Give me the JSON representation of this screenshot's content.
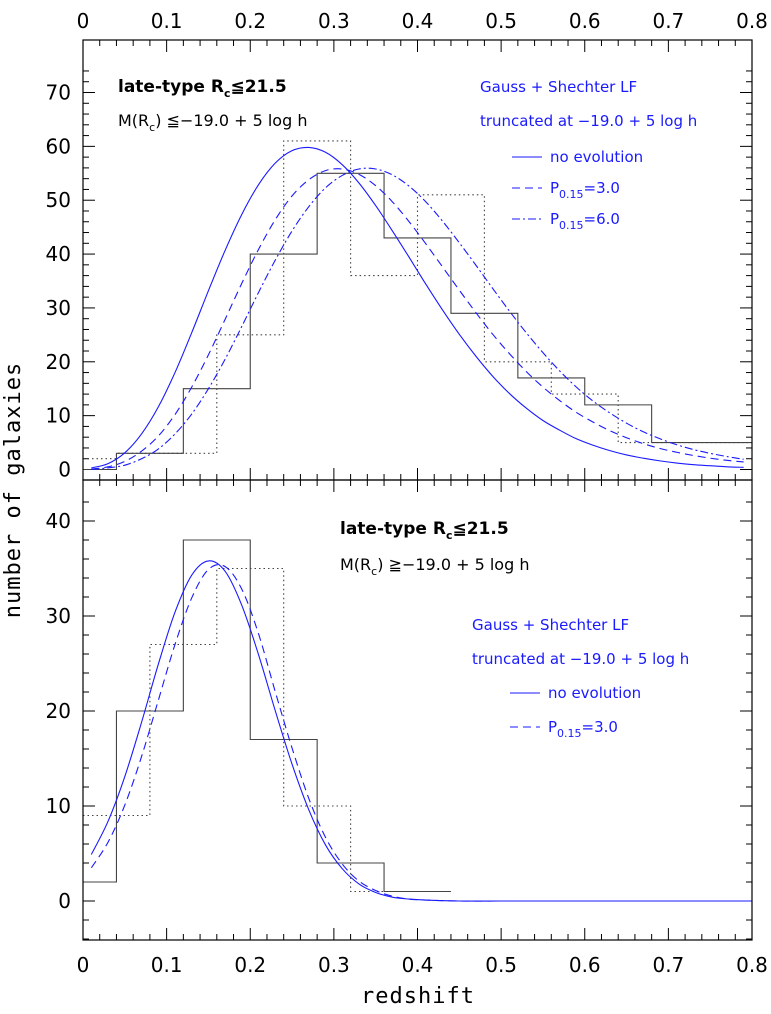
{
  "figure": {
    "xlabel": "redshift",
    "ylabel": "number of galaxies"
  },
  "chart_data": [
    {
      "type": "histogram+line",
      "panel": "top",
      "xlim": [
        0,
        0.8
      ],
      "ylim": [
        0,
        75
      ],
      "x_ticks": [
        "0",
        "0.1",
        "0.2",
        "0.3",
        "0.4",
        "0.5",
        "0.6",
        "0.7",
        "0.8"
      ],
      "y_ticks": [
        "0",
        "10",
        "20",
        "30",
        "40",
        "50",
        "60",
        "70"
      ],
      "annotations": {
        "sample_prefix": "late-type R",
        "sample_sub": "c",
        "sample_suffix": "≦21.5",
        "cut_prefix": "M(R",
        "cut_sub": "c",
        "cut_suffix": ") ≦−19.0 + 5 log h",
        "lf_title": "Gauss + Shechter LF",
        "lf_trunc": "truncated at −19.0 + 5 log h"
      },
      "legend": [
        {
          "label": "no evolution",
          "style": "solid"
        },
        {
          "label_prefix": "P",
          "label_sub": "0.15",
          "label_suffix": "=3.0",
          "style": "dashed"
        },
        {
          "label_prefix": "P",
          "label_sub": "0.15",
          "label_suffix": "=6.0",
          "style": "dashdot"
        }
      ],
      "histograms": [
        {
          "style": "solid",
          "color": "#444444",
          "edges": [
            0,
            0.04,
            0.12,
            0.2,
            0.28,
            0.36,
            0.44,
            0.52,
            0.6,
            0.68,
            0.8
          ],
          "counts": [
            0,
            3,
            15,
            40,
            55,
            43,
            29,
            17,
            12,
            5
          ]
        },
        {
          "style": "dotted",
          "color": "#444444",
          "edges": [
            0,
            0.04,
            0.12,
            0.16,
            0.24,
            0.32,
            0.4,
            0.48,
            0.56,
            0.64,
            0.8
          ],
          "counts": [
            2,
            3,
            3,
            25,
            61,
            36,
            51,
            20,
            14,
            5
          ]
        }
      ],
      "series": [
        {
          "style": "solid",
          "color": "#1a1aff",
          "x": [
            0.01,
            0.03,
            0.05,
            0.07,
            0.09,
            0.11,
            0.13,
            0.15,
            0.17,
            0.19,
            0.21,
            0.23,
            0.25,
            0.27,
            0.29,
            0.31,
            0.33,
            0.35,
            0.37,
            0.39,
            0.41,
            0.43,
            0.45,
            0.47,
            0.49,
            0.51,
            0.53,
            0.55,
            0.57,
            0.59,
            0.61,
            0.63,
            0.65,
            0.67,
            0.69,
            0.71,
            0.73,
            0.75,
            0.77,
            0.79
          ],
          "y": [
            0.3,
            1.1,
            3.1,
            6.6,
            11.6,
            18.0,
            25.4,
            33.2,
            40.7,
            47.4,
            52.9,
            56.9,
            59.2,
            59.8,
            58.9,
            56.6,
            53.2,
            49.0,
            44.3,
            39.4,
            34.4,
            29.6,
            25.1,
            21.0,
            17.3,
            14.1,
            11.4,
            9.1,
            7.3,
            5.7,
            4.5,
            3.5,
            2.7,
            2.1,
            1.6,
            1.2,
            0.9,
            0.7,
            0.5,
            0.4
          ]
        },
        {
          "style": "dashed",
          "color": "#1a1aff",
          "x": [
            0.01,
            0.03,
            0.05,
            0.07,
            0.09,
            0.11,
            0.13,
            0.15,
            0.17,
            0.19,
            0.21,
            0.23,
            0.25,
            0.27,
            0.29,
            0.31,
            0.33,
            0.35,
            0.37,
            0.39,
            0.41,
            0.43,
            0.45,
            0.47,
            0.49,
            0.51,
            0.53,
            0.55,
            0.57,
            0.59,
            0.61,
            0.63,
            0.65,
            0.67,
            0.69,
            0.71,
            0.73,
            0.75,
            0.77,
            0.79
          ],
          "y": [
            0.1,
            0.5,
            1.5,
            3.4,
            6.2,
            10.2,
            15.3,
            21.3,
            27.9,
            34.6,
            40.9,
            46.4,
            50.8,
            53.8,
            55.5,
            55.8,
            54.8,
            52.7,
            49.7,
            46.0,
            41.9,
            37.6,
            33.3,
            29.1,
            25.1,
            21.5,
            18.2,
            15.3,
            12.8,
            10.6,
            8.8,
            7.2,
            5.9,
            4.8,
            3.9,
            3.2,
            2.6,
            2.1,
            1.7,
            1.4
          ]
        },
        {
          "style": "dashdot",
          "color": "#1a1aff",
          "x": [
            0.01,
            0.03,
            0.05,
            0.07,
            0.09,
            0.11,
            0.13,
            0.15,
            0.17,
            0.19,
            0.21,
            0.23,
            0.25,
            0.27,
            0.29,
            0.31,
            0.33,
            0.35,
            0.37,
            0.39,
            0.41,
            0.43,
            0.45,
            0.47,
            0.49,
            0.51,
            0.53,
            0.55,
            0.57,
            0.59,
            0.61,
            0.63,
            0.65,
            0.67,
            0.69,
            0.71,
            0.73,
            0.75,
            0.77,
            0.79
          ],
          "y": [
            0.0,
            0.3,
            0.8,
            2.0,
            3.8,
            6.6,
            10.3,
            15.0,
            20.5,
            26.6,
            32.9,
            38.9,
            44.3,
            48.8,
            52.3,
            54.6,
            55.8,
            55.8,
            54.7,
            52.6,
            49.7,
            46.1,
            42.1,
            37.9,
            33.6,
            29.4,
            25.4,
            21.7,
            18.3,
            15.3,
            12.7,
            10.5,
            8.6,
            7.0,
            5.7,
            4.6,
            3.7,
            3.0,
            2.4,
            1.9
          ]
        }
      ]
    },
    {
      "type": "histogram+line",
      "panel": "bottom",
      "xlim": [
        0,
        0.8
      ],
      "ylim": [
        -4,
        43
      ],
      "x_ticks": [
        "0",
        "0.1",
        "0.2",
        "0.3",
        "0.4",
        "0.5",
        "0.6",
        "0.7",
        "0.8"
      ],
      "y_ticks": [
        "0",
        "10",
        "20",
        "30",
        "40"
      ],
      "annotations": {
        "sample_prefix": "late-type R",
        "sample_sub": "c",
        "sample_suffix": "≦21.5",
        "cut_prefix": "M(R",
        "cut_sub": "c",
        "cut_suffix": ") ≧−19.0 + 5 log h",
        "lf_title": "Gauss + Shechter LF",
        "lf_trunc": "truncated at −19.0 + 5 log h"
      },
      "legend": [
        {
          "label": "no evolution",
          "style": "solid"
        },
        {
          "label_prefix": "P",
          "label_sub": "0.15",
          "label_suffix": "=3.0",
          "style": "dashed"
        }
      ],
      "histograms": [
        {
          "style": "solid",
          "color": "#444444",
          "edges": [
            0,
            0.04,
            0.12,
            0.2,
            0.28,
            0.36,
            0.44
          ],
          "counts": [
            2,
            20,
            38,
            17,
            4,
            1
          ]
        },
        {
          "style": "dotted",
          "color": "#444444",
          "edges": [
            0,
            0.08,
            0.16,
            0.24,
            0.32,
            0.4
          ],
          "counts": [
            9,
            27,
            35,
            10,
            1
          ]
        }
      ],
      "series": [
        {
          "style": "solid",
          "color": "#1a1aff",
          "x": [
            0.01,
            0.03,
            0.05,
            0.07,
            0.09,
            0.11,
            0.13,
            0.15,
            0.17,
            0.19,
            0.21,
            0.23,
            0.25,
            0.27,
            0.29,
            0.31,
            0.33,
            0.35,
            0.37,
            0.39,
            0.41,
            0.45,
            0.5,
            0.55,
            0.6,
            0.65,
            0.7,
            0.75,
            0.8
          ],
          "y": [
            4.9,
            8.4,
            13.1,
            18.8,
            24.9,
            30.4,
            34.3,
            35.8,
            34.7,
            31.1,
            25.9,
            20.0,
            14.4,
            9.6,
            5.9,
            3.4,
            1.8,
            0.9,
            0.4,
            0.2,
            0.1,
            0.0,
            0.0,
            0.0,
            0.0,
            0.0,
            0.0,
            0.0,
            0.0
          ]
        },
        {
          "style": "dashed",
          "color": "#1a1aff",
          "x": [
            0.01,
            0.03,
            0.05,
            0.07,
            0.09,
            0.11,
            0.13,
            0.15,
            0.17,
            0.19,
            0.21,
            0.23,
            0.25,
            0.27,
            0.29,
            0.31,
            0.33,
            0.35,
            0.37,
            0.39,
            0.41,
            0.45,
            0.5,
            0.55,
            0.6,
            0.65,
            0.7,
            0.75,
            0.8
          ],
          "y": [
            3.5,
            6.2,
            10.1,
            15.2,
            21.1,
            27.0,
            31.9,
            34.9,
            35.2,
            32.8,
            28.1,
            22.0,
            16.1,
            10.8,
            6.7,
            3.9,
            2.1,
            1.1,
            0.5,
            0.2,
            0.1,
            0.0,
            0.0,
            0.0,
            0.0,
            0.0,
            0.0,
            0.0,
            0.0
          ]
        }
      ]
    }
  ]
}
